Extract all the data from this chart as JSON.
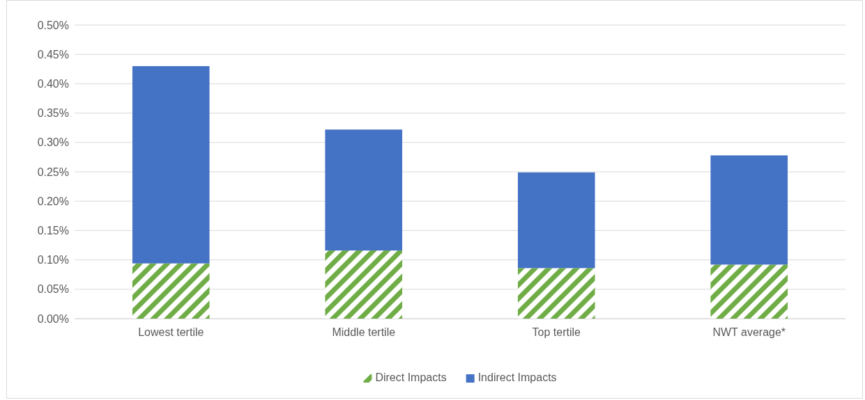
{
  "chart_data": {
    "type": "bar",
    "stacked": true,
    "categories": [
      "Lowest tertile",
      "Middle tertile",
      "Top tertile",
      "NWT average*"
    ],
    "series": [
      {
        "name": "Direct Impacts",
        "color": "#70ad47",
        "values": [
          0.094,
          0.116,
          0.086,
          0.092
        ]
      },
      {
        "name": "Indirect Impacts",
        "color": "#4472c4",
        "values": [
          0.336,
          0.206,
          0.163,
          0.186
        ]
      }
    ],
    "ylim": [
      0,
      0.5
    ],
    "yticks": [
      {
        "value": 0,
        "label": "0.00%"
      },
      {
        "value": 0.05,
        "label": "0.05%"
      },
      {
        "value": 0.1,
        "label": "0.10%"
      },
      {
        "value": 0.15,
        "label": "0.15%"
      },
      {
        "value": 0.2,
        "label": "0.20%"
      },
      {
        "value": 0.25,
        "label": "0.25%"
      },
      {
        "value": 0.3,
        "label": "0.30%"
      },
      {
        "value": 0.35,
        "label": "0.35%"
      },
      {
        "value": 0.4,
        "label": "0.40%"
      },
      {
        "value": 0.45,
        "label": "0.45%"
      },
      {
        "value": 0.5,
        "label": "0.50%"
      }
    ],
    "grid": "y",
    "legend": "bottom"
  }
}
